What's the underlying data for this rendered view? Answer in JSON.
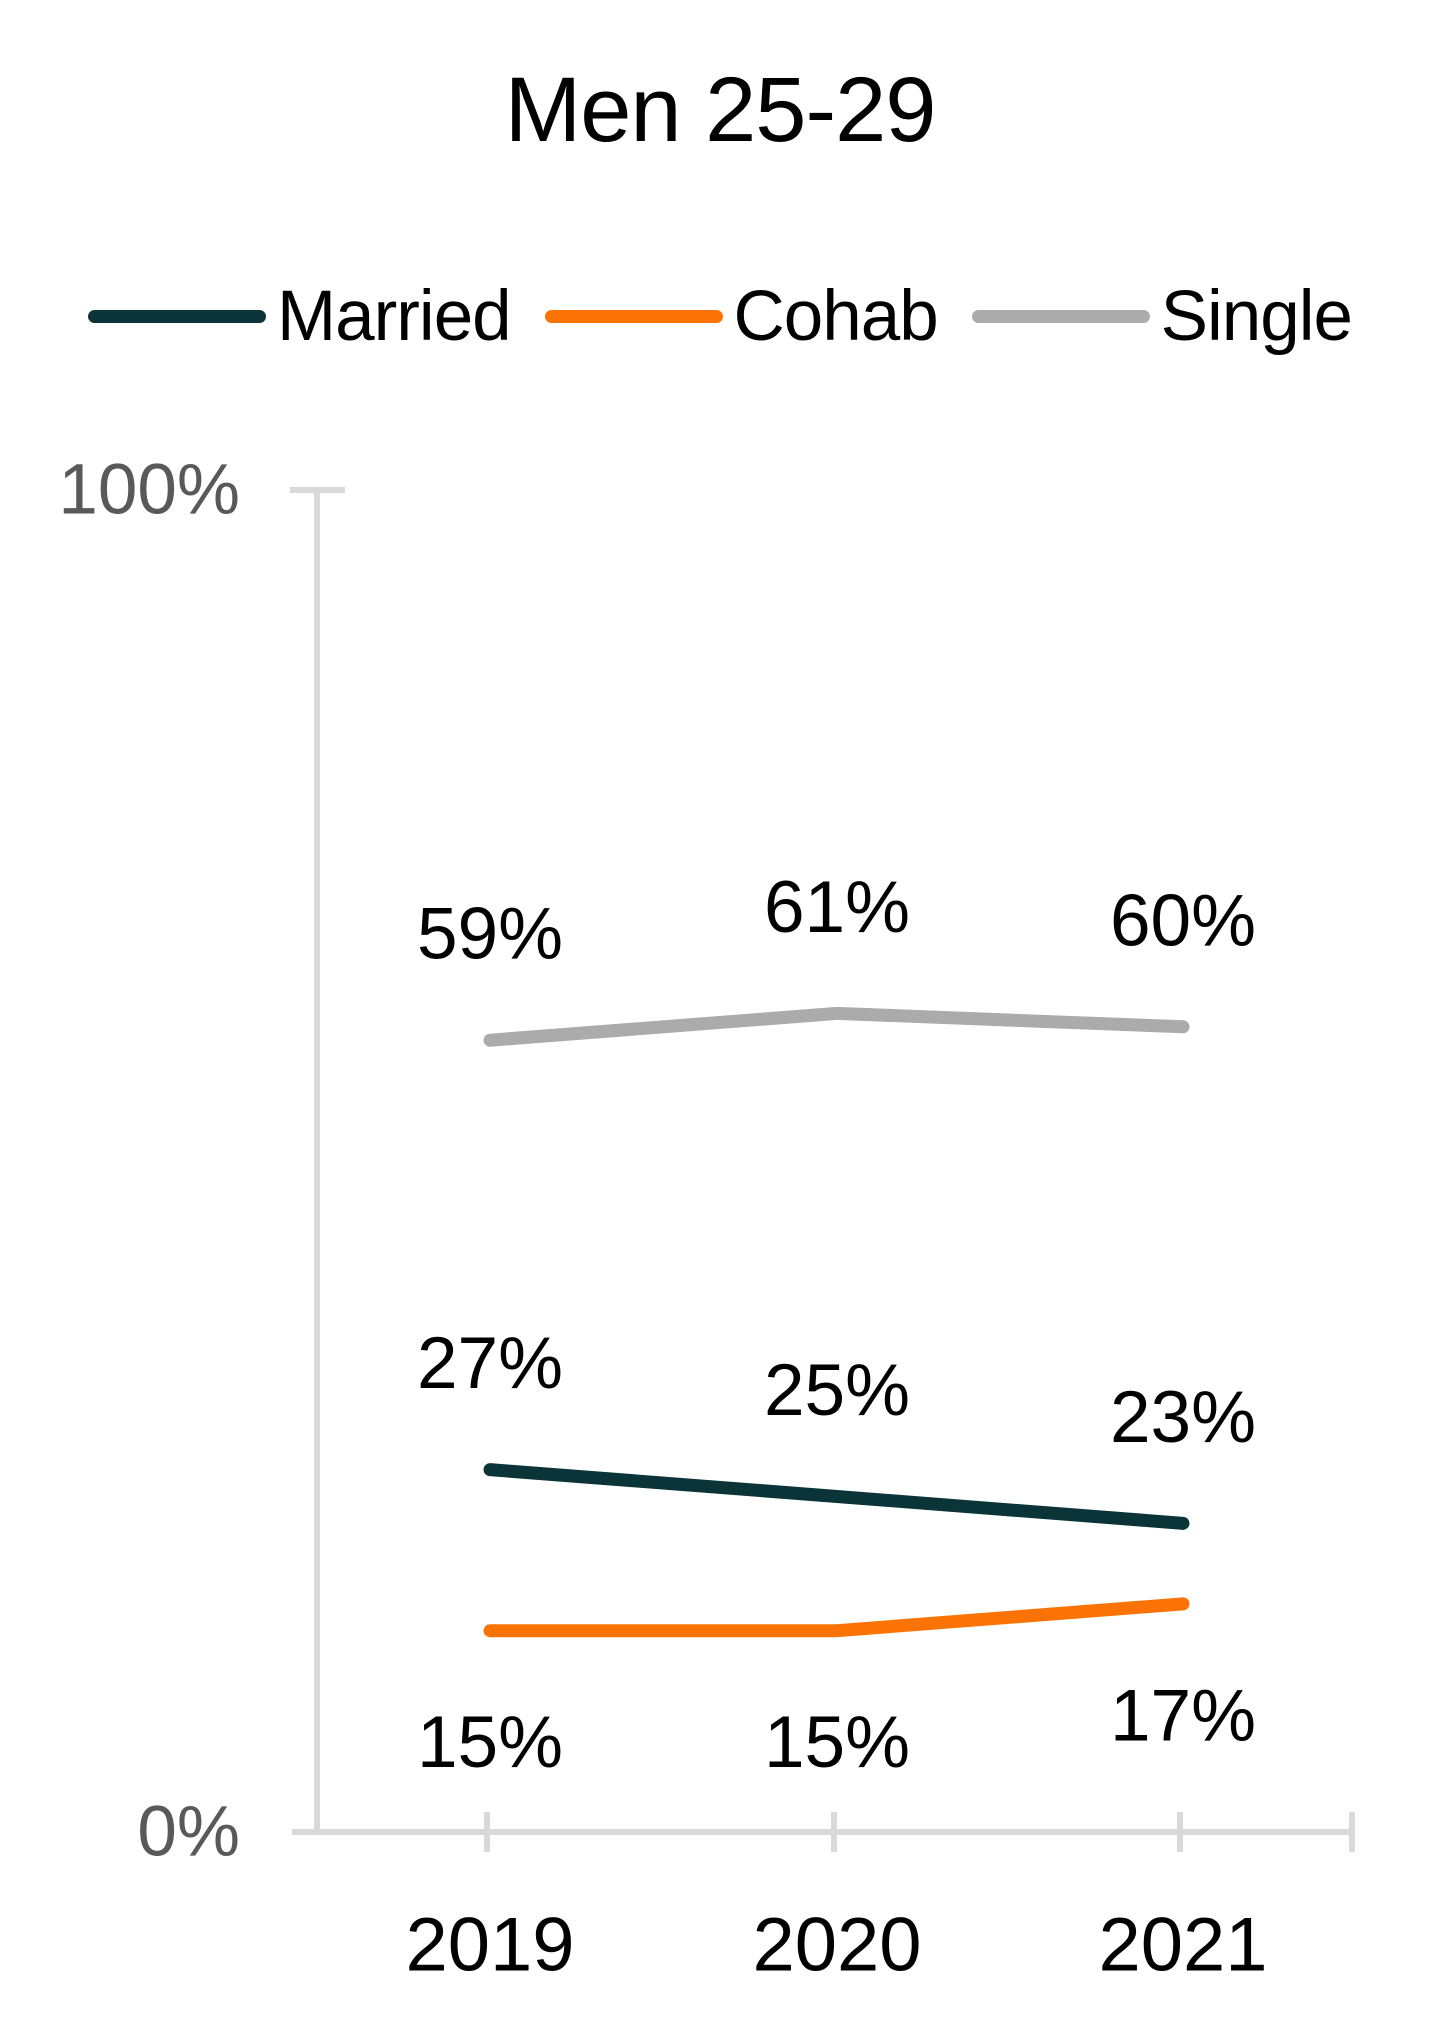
{
  "title": "Men 25-29",
  "chart_data": {
    "type": "line",
    "categories": [
      "2019",
      "2020",
      "2021"
    ],
    "series": [
      {
        "name": "Married",
        "color": "#0B3438",
        "values": [
          27,
          25,
          23
        ],
        "label_side": "above"
      },
      {
        "name": "Cohab",
        "color": "#FB7304",
        "values": [
          15,
          15,
          17
        ],
        "label_side": "below"
      },
      {
        "name": "Single",
        "color": "#ABABAB",
        "values": [
          59,
          61,
          60
        ],
        "label_side": "above"
      }
    ],
    "value_suffix": "%",
    "y_axis": {
      "min": 0,
      "max": 100,
      "min_label": "0%",
      "max_label": "100%"
    },
    "legend_position": "top",
    "grid": "off",
    "axis_color": "#D9D9D9",
    "axis_label_color": "#595959",
    "data_label_color": "#000000"
  }
}
